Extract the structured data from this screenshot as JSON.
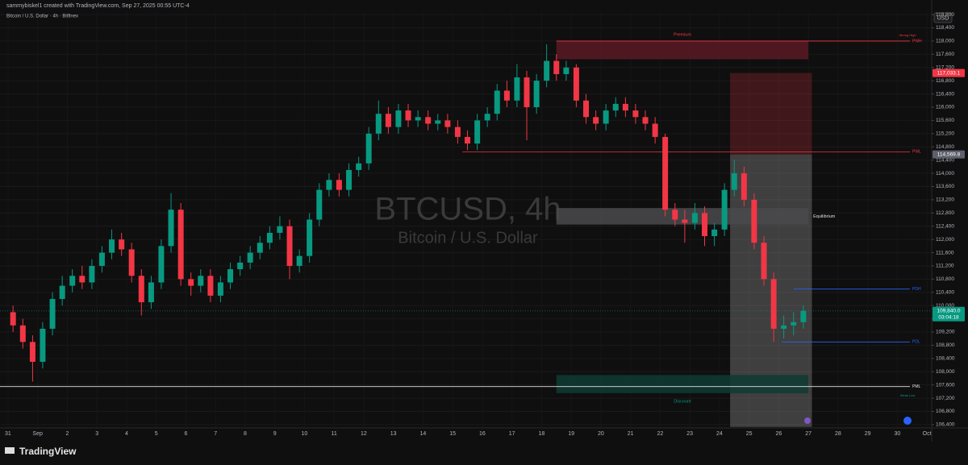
{
  "header": {
    "credit": "sammybiskel1 created with TradingView.com, Sep 27, 2025 00:55 UTC-4",
    "symbol_line": "Bitcoin / U.S. Dollar · 4h · Bitfinex",
    "currency": "USD",
    "brand": "TradingView"
  },
  "chart_data": {
    "type": "candlestick",
    "watermark": "BTCUSD, 4h",
    "watermark_sub": "Bitcoin / U.S. Dollar",
    "up_color": "#089981",
    "down_color": "#f23645",
    "xlim": [
      -0.27,
      31.16
    ],
    "xticks": [
      {
        "value": 0,
        "label": "31"
      },
      {
        "value": 1,
        "label": "Sep"
      },
      2,
      3,
      4,
      5,
      6,
      7,
      8,
      9,
      10,
      11,
      12,
      13,
      14,
      15,
      16,
      17,
      18,
      19,
      20,
      21,
      22,
      23,
      24,
      25,
      26,
      27,
      28,
      29,
      30,
      {
        "value": 31,
        "label": "Oct"
      }
    ],
    "ylim": [
      106300,
      118900
    ],
    "yticks": [
      {
        "value": 106400,
        "label": "106,400"
      },
      {
        "value": 106800,
        "label": "106,800"
      },
      {
        "value": 107200,
        "label": "107,200"
      },
      {
        "value": 107600,
        "label": "107,600"
      },
      {
        "value": 108000,
        "label": "108,000"
      },
      {
        "value": 108400,
        "label": "108,400"
      },
      {
        "value": 108800,
        "label": "108,800"
      },
      {
        "value": 109200,
        "label": "109,200"
      },
      {
        "value": 109600,
        "label": "109,600"
      },
      {
        "value": 110000,
        "label": "110,000"
      },
      {
        "value": 110400,
        "label": "110,400"
      },
      {
        "value": 110800,
        "label": "110,800"
      },
      {
        "value": 111200,
        "label": "111,200"
      },
      {
        "value": 111600,
        "label": "111,600"
      },
      {
        "value": 112000,
        "label": "112,000"
      },
      {
        "value": 112400,
        "label": "112,400"
      },
      {
        "value": 112800,
        "label": "112,800"
      },
      {
        "value": 113200,
        "label": "113,200"
      },
      {
        "value": 113600,
        "label": "113,600"
      },
      {
        "value": 114000,
        "label": "114,000"
      },
      {
        "value": 114400,
        "label": "114,400"
      },
      {
        "value": 114800,
        "label": "114,800"
      },
      {
        "value": 115200,
        "label": "115,200"
      },
      {
        "value": 115600,
        "label": "115,600"
      },
      {
        "value": 116000,
        "label": "116,000"
      },
      {
        "value": 116400,
        "label": "116,400"
      },
      {
        "value": 116800,
        "label": "116,800"
      },
      {
        "value": 117200,
        "label": "117,200"
      },
      {
        "value": 117600,
        "label": "117,600"
      },
      {
        "value": 118000,
        "label": "118,000"
      },
      {
        "value": 118400,
        "label": "118,400"
      },
      {
        "value": 118800,
        "label": "118,800"
      }
    ],
    "x": [
      0.17,
      0.5,
      0.83,
      1.17,
      1.5,
      1.83,
      2.17,
      2.5,
      2.83,
      3.17,
      3.5,
      3.83,
      4.17,
      4.5,
      4.83,
      5.17,
      5.5,
      5.83,
      6.17,
      6.5,
      6.83,
      7.17,
      7.5,
      7.83,
      8.17,
      8.5,
      8.83,
      9.17,
      9.5,
      9.83,
      10.17,
      10.5,
      10.83,
      11.17,
      11.5,
      11.83,
      12.17,
      12.5,
      12.83,
      13.17,
      13.5,
      13.83,
      14.17,
      14.5,
      14.83,
      15.17,
      15.5,
      15.83,
      16.17,
      16.5,
      16.83,
      17.17,
      17.5,
      17.83,
      18.17,
      18.5,
      18.83,
      19.17,
      19.5,
      19.83,
      20.17,
      20.5,
      20.83,
      21.17,
      21.5,
      21.83,
      22.17,
      22.5,
      22.83,
      23.17,
      23.5,
      23.83,
      24.17,
      24.5,
      24.83,
      25.17,
      25.5,
      25.83,
      26.17,
      26.5,
      26.83
    ],
    "open": [
      109800,
      109400,
      108900,
      108300,
      109300,
      110200,
      110600,
      110900,
      110700,
      111200,
      111600,
      112000,
      111700,
      110900,
      110100,
      110700,
      111800,
      112900,
      110800,
      110600,
      110900,
      110300,
      110700,
      111100,
      111300,
      111600,
      111900,
      112200,
      112400,
      111200,
      111500,
      112600,
      113500,
      113800,
      113500,
      114100,
      114300,
      115200,
      115800,
      115400,
      115900,
      115600,
      115700,
      115500,
      115600,
      115400,
      115100,
      114900,
      115600,
      115800,
      116500,
      116200,
      116900,
      116000,
      116800,
      117400,
      117000,
      117200,
      116200,
      115700,
      115500,
      115900,
      116100,
      115900,
      115700,
      115500,
      115100,
      112900,
      112600,
      112500,
      112800,
      112100,
      112300,
      113500,
      114000,
      113200,
      111900,
      110800,
      109300,
      109400,
      109500
    ],
    "high": [
      110000,
      109600,
      109100,
      109500,
      110400,
      110900,
      111100,
      111200,
      111400,
      111800,
      112300,
      112200,
      111900,
      111100,
      110900,
      112000,
      113400,
      113100,
      111000,
      111100,
      111100,
      110900,
      111300,
      111500,
      111800,
      112100,
      112400,
      112700,
      112600,
      111700,
      112800,
      113700,
      114000,
      114000,
      114300,
      114500,
      115400,
      116200,
      116000,
      116100,
      116100,
      115900,
      115900,
      115800,
      115800,
      115600,
      115300,
      115800,
      116000,
      116700,
      116800,
      117300,
      117100,
      117000,
      117900,
      117600,
      117400,
      117300,
      116400,
      115900,
      116100,
      116300,
      116300,
      116100,
      115900,
      115700,
      115200,
      113100,
      112900,
      113100,
      113000,
      112500,
      113700,
      114400,
      114200,
      113400,
      112100,
      111000,
      109700,
      109800,
      110000
    ],
    "low": [
      109200,
      108700,
      107700,
      108100,
      109100,
      110000,
      110400,
      110500,
      110500,
      111000,
      111400,
      111500,
      110700,
      109700,
      109900,
      110500,
      111600,
      110600,
      110300,
      110400,
      110100,
      110100,
      110500,
      110900,
      111100,
      111400,
      111700,
      112000,
      110800,
      111000,
      111300,
      112400,
      113300,
      113300,
      113300,
      113900,
      114100,
      115000,
      115200,
      115200,
      115400,
      115400,
      115300,
      115300,
      115200,
      114900,
      114700,
      114700,
      115400,
      115600,
      116000,
      116000,
      115000,
      115800,
      116600,
      116800,
      116800,
      116000,
      115500,
      115300,
      115300,
      115700,
      115700,
      115500,
      115300,
      114900,
      112700,
      112400,
      111900,
      112300,
      111800,
      111800,
      112100,
      113300,
      113000,
      111700,
      110600,
      108900,
      109000,
      109100,
      109300
    ],
    "close": [
      109400,
      108900,
      108300,
      109300,
      110200,
      110600,
      110900,
      110700,
      111200,
      111600,
      112000,
      111700,
      110900,
      110100,
      110700,
      111800,
      112900,
      110800,
      110600,
      110900,
      110300,
      110700,
      111100,
      111300,
      111600,
      111900,
      112200,
      112400,
      111200,
      111500,
      112600,
      113500,
      113800,
      113500,
      114100,
      114300,
      115200,
      115800,
      115400,
      115900,
      115600,
      115700,
      115500,
      115600,
      115400,
      115100,
      114900,
      115600,
      115800,
      116500,
      116200,
      116900,
      116000,
      116800,
      117400,
      117000,
      117200,
      116200,
      115700,
      115500,
      115900,
      116100,
      115900,
      115700,
      115500,
      115100,
      112900,
      112600,
      112500,
      112800,
      112100,
      112300,
      113500,
      114000,
      113200,
      111900,
      110800,
      109300,
      109400,
      109500,
      109840
    ],
    "zones": [
      {
        "name": "Premium",
        "low": 117450,
        "high": 118000,
        "start": 18.5,
        "end": 27,
        "color": "#5a1a24"
      },
      {
        "name": "Equilibrium",
        "low": 112450,
        "high": 112950,
        "start": 18.5,
        "end": 27,
        "color": "#4a4a4c"
      },
      {
        "name": "Discount",
        "low": 107350,
        "high": 107900,
        "start": 18.5,
        "end": 27,
        "color": "#0f3b33"
      }
    ],
    "levels": [
      {
        "name": "PWH",
        "note": "Strong High",
        "value": 118000,
        "start": 18.5,
        "color": "#f23645"
      },
      {
        "name": "PWL",
        "value": 114650,
        "start": 15.33,
        "color": "#f23645"
      },
      {
        "name": "PDH",
        "value": 110500,
        "start": 26.5,
        "color": "#2962ff"
      },
      {
        "name": "PDL",
        "value": 108900,
        "start": 26.1,
        "color": "#2962ff"
      },
      {
        "name": "PML",
        "note": "Weak Low",
        "value": 107550,
        "start": -0.27,
        "color": "#e0e0e0"
      }
    ],
    "position": {
      "start": 24.36,
      "end": 27.12,
      "stop": {
        "value": 117033.1,
        "label": "117,033.1"
      },
      "entry": {
        "value": 114569.8,
        "label": "114,569.8"
      },
      "target": 106330
    },
    "last_price": {
      "value": 109840,
      "label": "109,840.0",
      "countdown": "03:04:18"
    }
  }
}
